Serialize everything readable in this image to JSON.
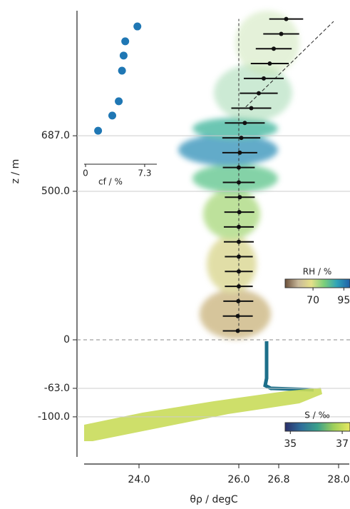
{
  "chart_data": {
    "type": "profile",
    "xlabel": "θρ / degC",
    "ylabel": "z / m",
    "xlim": [
      22.9,
      28.3
    ],
    "xticks": [
      {
        "value": 24,
        "label": "24.0"
      },
      {
        "value": 26,
        "label": "26.0"
      },
      26.8,
      {
        "value": 28,
        "label": "28.0"
      }
    ],
    "ylim": [
      -152,
      1108
    ],
    "yticks": [
      {
        "value": 687,
        "label": "687.0"
      },
      {
        "value": 500,
        "label": "500.0"
      },
      0,
      {
        "value": -63,
        "label": "-63.0"
      },
      {
        "value": -100,
        "label": "-100.0"
      }
    ],
    "profile": {
      "color": "#111111",
      "z": [
        30,
        80,
        130,
        180,
        230,
        280,
        330,
        380,
        430,
        480,
        530,
        580,
        630,
        680,
        730,
        780,
        830,
        880,
        930,
        980,
        1030,
        1080
      ],
      "theta": [
        25.98,
        25.98,
        25.99,
        26.0,
        26.0,
        26.0,
        26.0,
        26.0,
        26.01,
        26.02,
        26.0,
        26.0,
        26.02,
        26.05,
        26.12,
        26.25,
        26.4,
        26.5,
        26.62,
        26.7,
        26.85,
        26.95
      ],
      "err": [
        0.3,
        0.3,
        0.3,
        0.28,
        0.28,
        0.28,
        0.3,
        0.3,
        0.3,
        0.3,
        0.32,
        0.32,
        0.35,
        0.38,
        0.4,
        0.4,
        0.38,
        0.4,
        0.38,
        0.36,
        0.36,
        0.34
      ]
    },
    "reference_line": {
      "theta": [
        26.14,
        27.9
      ],
      "z": [
        784,
        1072
      ]
    },
    "cf": {
      "xlabel": "cf / %",
      "xlim": [
        0,
        8.8
      ],
      "xticks": [
        0,
        7.3
      ],
      "color": "#1f77b4",
      "values": [
        1.55,
        3.3,
        4.1,
        4.5,
        4.7,
        4.9,
        6.4
      ],
      "z": [
        704,
        755,
        803,
        906,
        957,
        1005,
        1055
      ]
    },
    "colorbars": [
      {
        "label": "RH / %",
        "clim": [
          47.4,
          100
        ],
        "ticks": [
          70,
          95
        ],
        "colors": [
          "#6b4f3a",
          "#c8b89a",
          "#e6e08a",
          "#7ccf7a",
          "#2fa3b8",
          "#1f5fa8"
        ]
      },
      {
        "label": "S / ‰",
        "clim": [
          34.8,
          37.3
        ],
        "ticks": [
          35,
          37
        ],
        "colors": [
          "#2b2f6b",
          "#2f6f9a",
          "#3aa08a",
          "#9fcf5a",
          "#e8e860"
        ]
      }
    ]
  }
}
